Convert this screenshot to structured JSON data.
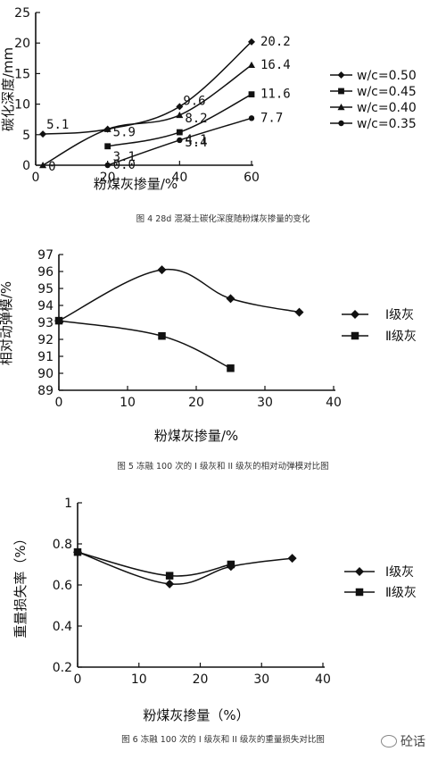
{
  "chart_data": [
    {
      "type": "line",
      "caption": "图 4 28d 混凝土碳化深度随粉煤灰掺量的变化",
      "xlabel": "粉煤灰掺量/%",
      "ylabel": "碳化深度/mm",
      "xlim": [
        0,
        60
      ],
      "ylim": [
        0,
        25
      ],
      "x_ticks": [
        "0",
        "20",
        "40",
        "60"
      ],
      "y_ticks": [
        "0",
        "5",
        "10",
        "15",
        "20",
        "25"
      ],
      "legend_position": "right",
      "series": [
        {
          "name": "w/c=0.50",
          "marker": "diamond",
          "x": [
            2,
            20,
            40,
            60
          ],
          "y": [
            5.1,
            5.9,
            9.6,
            20.2
          ],
          "labels": [
            "5.1",
            "",
            "9.6",
            "20.2"
          ]
        },
        {
          "name": "w/c=0.45",
          "marker": "square",
          "x": [
            20,
            40,
            60
          ],
          "y": [
            3.1,
            5.4,
            11.6
          ],
          "labels": [
            "3.1",
            "5.4",
            "11.6"
          ]
        },
        {
          "name": "w/c=0.40",
          "marker": "triangle",
          "x": [
            2,
            20,
            40,
            60
          ],
          "y": [
            0,
            5.9,
            8.2,
            16.4
          ],
          "labels": [
            "0",
            "5.9",
            "8.2",
            "16.4"
          ]
        },
        {
          "name": "w/c=0.35",
          "marker": "circle",
          "x": [
            20,
            40,
            60
          ],
          "y": [
            0,
            4.1,
            7.7
          ],
          "labels": [
            "0.0",
            "4.1",
            "7.7"
          ]
        }
      ]
    },
    {
      "type": "line",
      "caption": "图 5 冻融 100 次的 I 级灰和 II 级灰的相对动弹模对比图",
      "xlabel": "粉煤灰掺量/%",
      "ylabel": "相对动弹模/%",
      "xlim": [
        0,
        40
      ],
      "ylim": [
        89,
        97
      ],
      "x_ticks": [
        "0",
        "10",
        "20",
        "30",
        "40"
      ],
      "y_ticks": [
        "89",
        "90",
        "91",
        "92",
        "93",
        "94",
        "95",
        "96",
        "97"
      ],
      "legend_position": "right",
      "series": [
        {
          "name": "Ⅰ级灰",
          "marker": "diamond",
          "x": [
            0,
            15,
            25,
            35
          ],
          "y": [
            93.1,
            96.1,
            94.4,
            93.6
          ]
        },
        {
          "name": "Ⅱ级灰",
          "marker": "square",
          "x": [
            0,
            15,
            25
          ],
          "y": [
            93.1,
            92.2,
            90.3
          ]
        }
      ]
    },
    {
      "type": "line",
      "caption": "图 6 冻融 100 次的 I 级灰和 II 级灰的重量损失对比图",
      "xlabel": "粉煤灰掺量（%）",
      "ylabel": "重量损失率（%）",
      "xlim": [
        0,
        40
      ],
      "ylim": [
        0.2,
        1
      ],
      "x_ticks": [
        "0",
        "10",
        "20",
        "30",
        "40"
      ],
      "y_ticks": [
        "0.2",
        "0.4",
        "0.6",
        "0.8",
        "1"
      ],
      "legend_position": "right",
      "series": [
        {
          "name": "Ⅰ级灰",
          "marker": "diamond",
          "x": [
            0,
            15,
            25,
            35
          ],
          "y": [
            0.76,
            0.605,
            0.69,
            0.73
          ]
        },
        {
          "name": "Ⅱ级灰",
          "marker": "square",
          "x": [
            0,
            15,
            25
          ],
          "y": [
            0.76,
            0.645,
            0.7
          ]
        }
      ]
    }
  ],
  "watermark": "砼话"
}
